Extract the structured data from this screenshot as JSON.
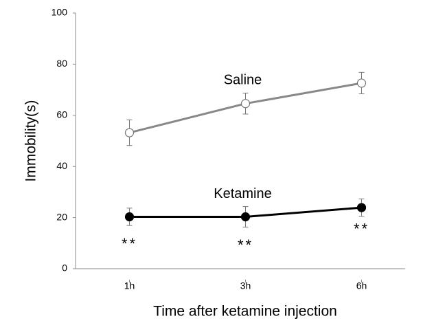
{
  "chart_data": {
    "type": "line",
    "x_label": "Time after ketamine injection",
    "y_label": "Immobility(s)",
    "categories": [
      "1h",
      "3h",
      "6h"
    ],
    "series": [
      {
        "name": "Saline",
        "color": "#888888",
        "marker": "open",
        "values": [
          53.2,
          64.6,
          72.6
        ],
        "errors": [
          5.0,
          4.1,
          4.2
        ]
      },
      {
        "name": "Ketamine",
        "color": "#000000",
        "marker": "filled",
        "values": [
          20.3,
          20.3,
          23.9
        ],
        "errors": [
          3.4,
          4.0,
          3.4
        ]
      }
    ],
    "significance_labels": [
      "**",
      "**",
      "**"
    ],
    "ylim": [
      0,
      100
    ],
    "yticks": [
      0,
      20,
      40,
      60,
      80,
      100
    ],
    "grid": false
  }
}
